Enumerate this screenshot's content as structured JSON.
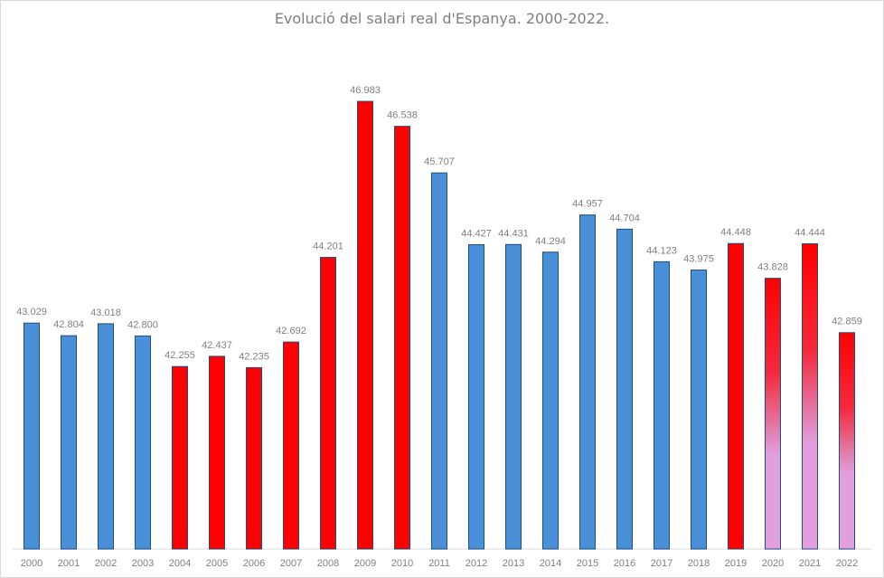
{
  "chart_data": {
    "type": "bar",
    "title": "Evolució del salari real d'Espanya. 2000-2022.",
    "xlabel": "",
    "ylabel": "",
    "ylim": [
      39,
      48
    ],
    "grid": false,
    "legend": "none",
    "categories": [
      "2000",
      "2001",
      "2002",
      "2003",
      "2004",
      "2005",
      "2006",
      "2007",
      "2008",
      "2009",
      "2010",
      "2011",
      "2012",
      "2013",
      "2014",
      "2015",
      "2016",
      "2017",
      "2018",
      "2019",
      "2020",
      "2021",
      "2022"
    ],
    "values": [
      43.029,
      42.804,
      43.018,
      42.8,
      42.255,
      42.437,
      42.235,
      42.692,
      44.201,
      46.983,
      46.538,
      45.707,
      44.427,
      44.431,
      44.294,
      44.957,
      44.704,
      44.123,
      43.975,
      44.448,
      43.828,
      44.444,
      42.859
    ],
    "value_labels": [
      "43.029",
      "42.804",
      "43.018",
      "42.800",
      "42.255",
      "42.437",
      "42.235",
      "42.692",
      "44.201",
      "46.983",
      "46.538",
      "45.707",
      "44.427",
      "44.431",
      "44.294",
      "44.957",
      "44.704",
      "44.123",
      "43.975",
      "44.448",
      "43.828",
      "44.444",
      "42.859"
    ],
    "bar_styles": [
      "blue",
      "blue",
      "blue",
      "blue",
      "red",
      "red",
      "red",
      "red",
      "red",
      "red",
      "red",
      "blue",
      "blue",
      "blue",
      "blue",
      "blue",
      "blue",
      "blue",
      "blue",
      "red",
      "gradient",
      "gradient",
      "gradient"
    ],
    "colors": {
      "blue": "#4a90d9",
      "red": "#ff0000",
      "gradient_top": "#ff0000",
      "gradient_bottom": "#e39edd",
      "bar_border": "#1f4e79",
      "axis": "#d9d9d9",
      "text": "#7f7f7f"
    }
  }
}
